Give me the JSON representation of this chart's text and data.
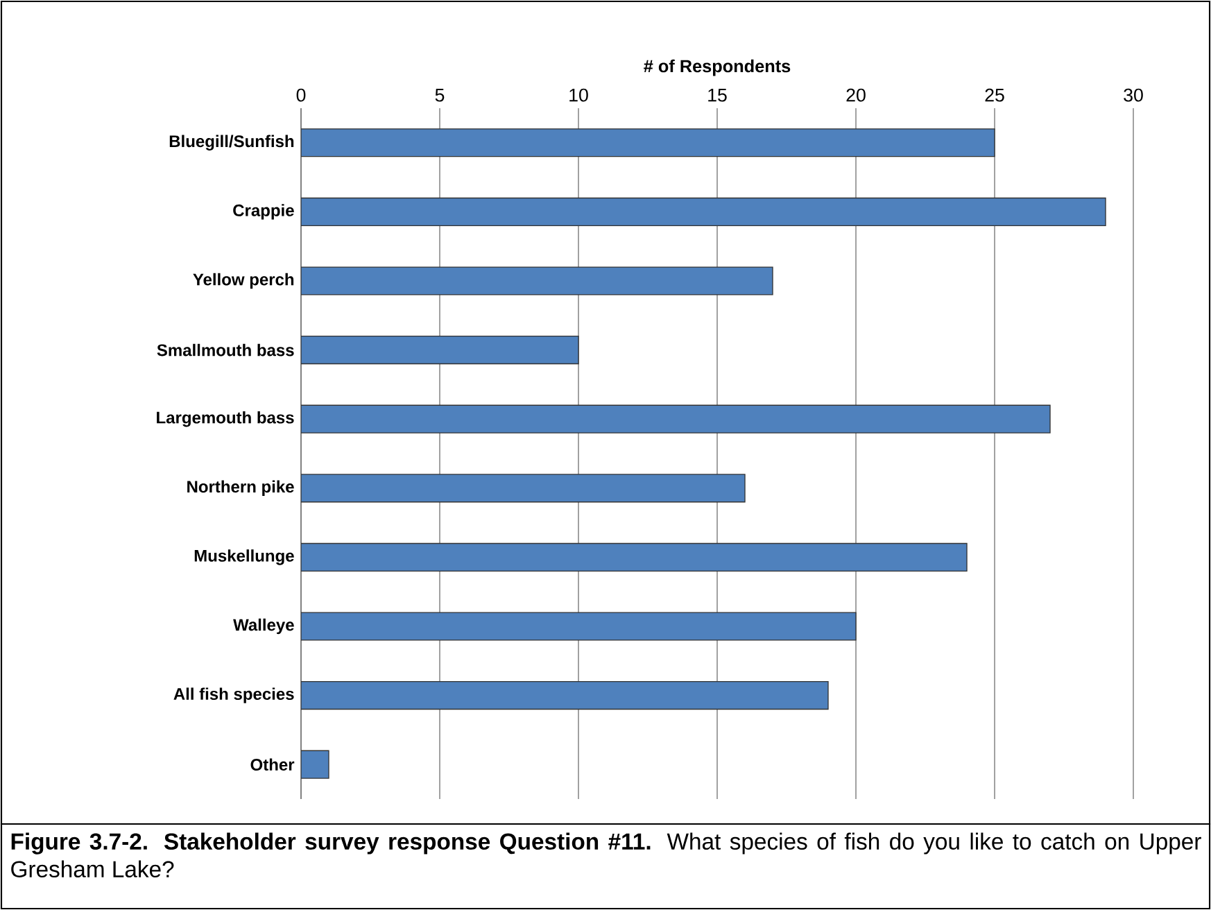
{
  "chart_data": {
    "type": "bar",
    "orientation": "horizontal",
    "title": "**Figure 3.7-2.  Stakeholder survey response Question #11.**  What species of fish do you like to catch on Upper Gresham Lake?",
    "xlabel": "# of Respondents",
    "categories": [
      "Bluegill/Sunfish",
      "Crappie",
      "Yellow perch",
      "Smallmouth bass",
      "Largemouth bass",
      "Northern pike",
      "Muskellunge",
      "Walleye",
      "All fish species",
      "Other"
    ],
    "values": [
      25,
      29,
      17,
      10,
      27,
      16,
      24,
      20,
      19,
      1
    ],
    "color": "#4f81bd",
    "xlim": [
      0,
      30
    ],
    "xticks": [
      0,
      5,
      10,
      15,
      20,
      25,
      30
    ],
    "grid": "x"
  }
}
